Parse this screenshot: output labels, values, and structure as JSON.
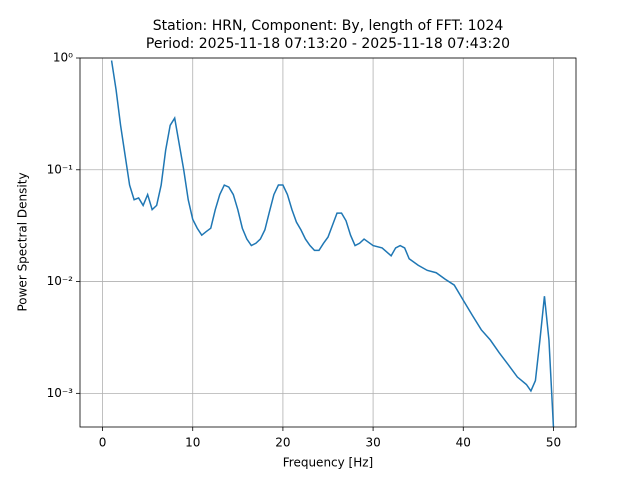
{
  "chart_data": {
    "type": "line",
    "title": "Station: HRN, Component: By, length of FFT: 1024",
    "subtitle": "Period: 2025-11-18 07:13:20 - 2025-11-18 07:43:20",
    "x_label": "Frequency [Hz]",
    "y_label": "Power Spectral Density",
    "x": [
      1,
      1.5,
      2,
      2.5,
      3,
      3.5,
      4,
      4.5,
      5,
      5.5,
      6,
      6.5,
      7,
      7.5,
      8,
      8.5,
      9,
      9.5,
      10,
      10.5,
      11,
      11.5,
      12,
      12.5,
      13,
      13.5,
      14,
      14.5,
      15,
      15.5,
      16,
      16.5,
      17,
      17.5,
      18,
      18.5,
      19,
      19.5,
      20,
      20.5,
      21,
      21.5,
      22,
      22.5,
      23,
      23.5,
      24,
      24.5,
      25,
      25.5,
      26,
      26.5,
      27,
      27.5,
      28,
      28.5,
      29,
      30,
      31,
      32,
      32.5,
      33,
      33.5,
      34,
      35,
      36,
      37,
      38,
      39,
      40,
      41,
      42,
      43,
      44,
      45,
      46,
      47,
      47.5,
      48,
      48.5,
      49,
      49.5,
      50
    ],
    "series": [
      {
        "name": "PSD",
        "color": "#1f77b4",
        "values": [
          0.95,
          0.52,
          0.25,
          0.135,
          0.073,
          0.054,
          0.056,
          0.048,
          0.06,
          0.044,
          0.048,
          0.073,
          0.15,
          0.25,
          0.29,
          0.17,
          0.1,
          0.054,
          0.036,
          0.03,
          0.026,
          0.028,
          0.03,
          0.044,
          0.06,
          0.073,
          0.07,
          0.06,
          0.044,
          0.03,
          0.024,
          0.021,
          0.022,
          0.024,
          0.029,
          0.042,
          0.06,
          0.073,
          0.073,
          0.06,
          0.044,
          0.034,
          0.029,
          0.024,
          0.021,
          0.019,
          0.019,
          0.022,
          0.025,
          0.032,
          0.041,
          0.041,
          0.035,
          0.026,
          0.021,
          0.022,
          0.024,
          0.021,
          0.02,
          0.017,
          0.02,
          0.021,
          0.02,
          0.016,
          0.014,
          0.0126,
          0.012,
          0.0105,
          0.0093,
          0.0068,
          0.005,
          0.0037,
          0.003,
          0.0023,
          0.0018,
          0.0014,
          0.0012,
          0.00105,
          0.0013,
          0.003,
          0.0074,
          0.003,
          0.0005
        ]
      }
    ],
    "xlim": [
      -2.5,
      52.5
    ],
    "xticks": [
      0,
      10,
      20,
      30,
      40,
      50
    ],
    "ylim": [
      0.0005,
      1
    ],
    "log_y": true,
    "yticks": [
      {
        "value": 0.001,
        "label": "10⁻³"
      },
      {
        "value": 0.01,
        "label": "10⁻²"
      },
      {
        "value": 0.1,
        "label": "10⁻¹"
      },
      {
        "value": 1,
        "label": "10⁰"
      }
    ],
    "grid": true
  }
}
